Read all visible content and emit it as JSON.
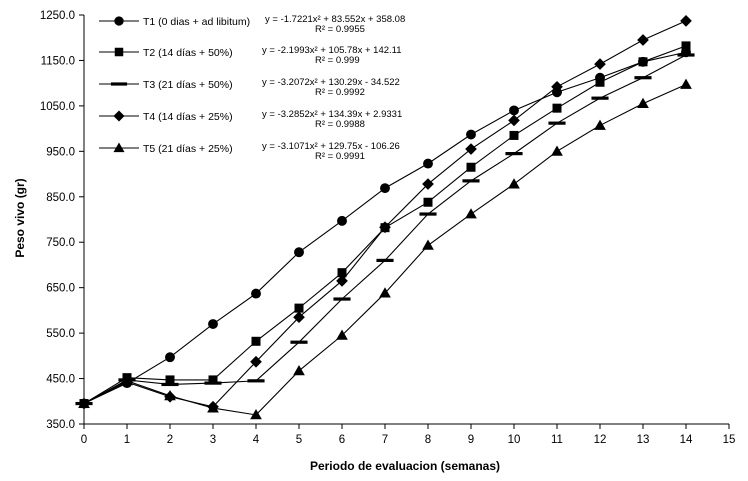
{
  "chart_data": {
    "type": "line",
    "xlabel": "Periodo de evaluacion (semanas)",
    "ylabel": "Peso vivo (gr)",
    "xlim": [
      0,
      15
    ],
    "ylim": [
      350,
      1250
    ],
    "x_ticks": [
      0,
      1,
      2,
      3,
      4,
      5,
      6,
      7,
      8,
      9,
      10,
      11,
      12,
      13,
      14,
      15
    ],
    "y_ticks": [
      350,
      450,
      550,
      650,
      750,
      850,
      950,
      1050,
      1150,
      1250
    ],
    "y_tick_labels": [
      "350.0",
      "450.0",
      "550.0",
      "650.0",
      "750.0",
      "850.0",
      "950.0",
      "1050.0",
      "1150.0",
      "1250.0"
    ],
    "grid": false,
    "legend_position": "top-left",
    "series": [
      {
        "name": "T1 (0 dias + ad libitum)",
        "marker": "circle",
        "equation": "y = -1.7221x² + 83.552x + 358.08",
        "r2": "R² = 0.9955",
        "x": [
          0,
          1,
          2,
          3,
          4,
          5,
          6,
          7,
          8,
          9,
          10,
          11,
          12,
          13,
          14
        ],
        "y": [
          395,
          440,
          497,
          570,
          637,
          728,
          797,
          869,
          923,
          987,
          1040,
          1080,
          1112,
          1147,
          1168
        ]
      },
      {
        "name": "T2 (14 días + 50%)",
        "marker": "square",
        "equation": "y = -2.1993x² + 105.78x + 142.11",
        "r2": "R² = 0.999",
        "x": [
          0,
          1,
          2,
          3,
          4,
          5,
          6,
          7,
          8,
          9,
          10,
          11,
          12,
          13,
          14
        ],
        "y": [
          395,
          452,
          447,
          447,
          532,
          605,
          683,
          782,
          838,
          915,
          985,
          1045,
          1102,
          1147,
          1182
        ]
      },
      {
        "name": "T3 (21 días + 50%)",
        "marker": "dash",
        "equation": "y = -3.2072x² + 130.29x - 34.522",
        "r2": "R² = 0.9992",
        "x": [
          0,
          1,
          2,
          3,
          4,
          5,
          6,
          7,
          8,
          9,
          10,
          11,
          12,
          13,
          14
        ],
        "y": [
          395,
          447,
          437,
          440,
          445,
          530,
          625,
          710,
          812,
          885,
          945,
          1012,
          1067,
          1112,
          1162
        ]
      },
      {
        "name": "T4 (14 días + 25%)",
        "marker": "diamond",
        "equation": "y = -3.2852x² + 134.39x + 2.9331",
        "r2": "R² = 0.9988",
        "x": [
          0,
          1,
          2,
          3,
          4,
          5,
          6,
          7,
          8,
          9,
          10,
          11,
          12,
          13,
          14
        ],
        "y": [
          395,
          442,
          410,
          388,
          487,
          585,
          665,
          783,
          878,
          955,
          1018,
          1092,
          1142,
          1195,
          1237
        ]
      },
      {
        "name": "T5 (21 días + 25%)",
        "marker": "triangle",
        "equation": "y = -3.1071x² + 129.75x - 106.26",
        "r2": "R² = 0.9991",
        "x": [
          0,
          1,
          2,
          3,
          4,
          5,
          6,
          7,
          8,
          9,
          10,
          11,
          12,
          13,
          14
        ],
        "y": [
          395,
          445,
          412,
          385,
          370,
          467,
          545,
          638,
          743,
          812,
          878,
          950,
          1007,
          1055,
          1097
        ]
      }
    ]
  }
}
